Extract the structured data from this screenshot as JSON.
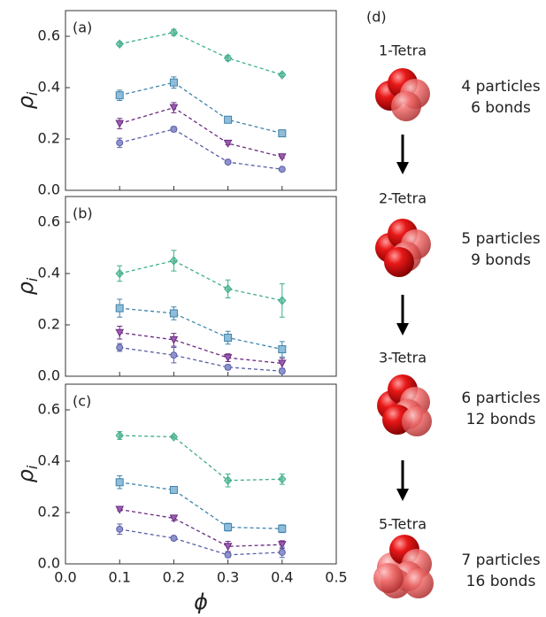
{
  "chart_data": [
    {
      "type": "line",
      "panel_label": "(a)",
      "ylabel": "ρ",
      "ylabel_sub": "i",
      "x": [
        0.1,
        0.2,
        0.3,
        0.4
      ],
      "xlim": [
        0,
        0.5
      ],
      "ylim": [
        0,
        0.7
      ],
      "xticks": [
        {
          "value": 0,
          "label": "0.0"
        },
        0.1,
        0.2,
        0.3,
        0.4,
        {
          "value": 0.5,
          "label": "0.5"
        }
      ],
      "show_xtick_labels": false,
      "yticks": [
        {
          "value": 0,
          "label": "0.0"
        },
        0.2,
        0.4,
        0.6
      ],
      "series": [
        {
          "color": "#3fae8c",
          "marker": "diamond",
          "values": [
            0.57,
            0.615,
            0.515,
            0.45
          ],
          "errors": [
            0.008,
            0.012,
            0.01,
            0.006
          ]
        },
        {
          "color": "#3f84ad",
          "marker": "square",
          "values": [
            0.37,
            0.42,
            0.275,
            0.222
          ],
          "errors": [
            0.02,
            0.022,
            0.01,
            0.012
          ]
        },
        {
          "color": "#6a2a82",
          "marker": "triangle-down",
          "values": [
            0.26,
            0.322,
            0.183,
            0.13
          ],
          "errors": [
            0.02,
            0.02,
            0.006,
            0.005
          ]
        },
        {
          "color": "#5a5fa8",
          "marker": "circle",
          "values": [
            0.185,
            0.238,
            0.11,
            0.082
          ],
          "errors": [
            0.018,
            0.01,
            0.005,
            0.004
          ]
        }
      ]
    },
    {
      "type": "line",
      "panel_label": "(b)",
      "ylabel": "ρ",
      "ylabel_sub": "i",
      "x": [
        0.1,
        0.2,
        0.3,
        0.4
      ],
      "xlim": [
        0,
        0.5
      ],
      "ylim": [
        0,
        0.7
      ],
      "xticks": [
        {
          "value": 0,
          "label": "0.0"
        },
        0.1,
        0.2,
        0.3,
        0.4,
        {
          "value": 0.5,
          "label": "0.5"
        }
      ],
      "show_xtick_labels": false,
      "yticks": [
        {
          "value": 0,
          "label": "0.0"
        },
        0.2,
        0.4,
        0.6
      ],
      "series": [
        {
          "color": "#3fae8c",
          "marker": "diamond",
          "values": [
            0.4,
            0.45,
            0.34,
            0.295
          ],
          "errors": [
            0.03,
            0.04,
            0.035,
            0.065
          ]
        },
        {
          "color": "#3f84ad",
          "marker": "square",
          "values": [
            0.265,
            0.245,
            0.15,
            0.105
          ],
          "errors": [
            0.035,
            0.025,
            0.025,
            0.03
          ]
        },
        {
          "color": "#6a2a82",
          "marker": "triangle-down",
          "values": [
            0.17,
            0.142,
            0.072,
            0.05
          ],
          "errors": [
            0.025,
            0.025,
            0.015,
            0.02
          ]
        },
        {
          "color": "#5a5fa8",
          "marker": "circle",
          "values": [
            0.112,
            0.082,
            0.035,
            0.02
          ],
          "errors": [
            0.015,
            0.03,
            0.01,
            0.01
          ]
        }
      ]
    },
    {
      "type": "line",
      "panel_label": "(c)",
      "ylabel": "ρ",
      "ylabel_sub": "i",
      "xlabel": "ϕ",
      "x": [
        0.1,
        0.2,
        0.3,
        0.4
      ],
      "xlim": [
        0,
        0.5
      ],
      "ylim": [
        0,
        0.7
      ],
      "xticks": [
        {
          "value": 0,
          "label": "0.0"
        },
        0.1,
        0.2,
        0.3,
        0.4,
        {
          "value": 0.5,
          "label": "0.5"
        }
      ],
      "show_xtick_labels": true,
      "yticks": [
        {
          "value": 0,
          "label": "0.0"
        },
        0.2,
        0.4,
        0.6
      ],
      "series": [
        {
          "color": "#3fae8c",
          "marker": "diamond",
          "values": [
            0.5,
            0.495,
            0.325,
            0.33
          ],
          "errors": [
            0.015,
            0.005,
            0.025,
            0.02
          ]
        },
        {
          "color": "#3f84ad",
          "marker": "square",
          "values": [
            0.318,
            0.288,
            0.143,
            0.137
          ],
          "errors": [
            0.025,
            0.01,
            0.015,
            0.015
          ]
        },
        {
          "color": "#6a2a82",
          "marker": "triangle-down",
          "values": [
            0.212,
            0.178,
            0.068,
            0.075
          ],
          "errors": [
            0.005,
            0.01,
            0.02,
            0.015
          ]
        },
        {
          "color": "#5a5fa8",
          "marker": "circle",
          "values": [
            0.135,
            0.1,
            0.035,
            0.045
          ],
          "errors": [
            0.02,
            0.005,
            0.01,
            0.02
          ]
        }
      ]
    }
  ],
  "diagram": {
    "label": "(d)",
    "stages": [
      {
        "name": "1-Tetra",
        "particles": "4 particles",
        "bonds": "6 bonds"
      },
      {
        "name": "2-Tetra",
        "particles": "5 particles",
        "bonds": "9 bonds"
      },
      {
        "name": "3-Tetra",
        "particles": "6 particles",
        "bonds": "12 bonds"
      },
      {
        "name": "5-Tetra",
        "particles": "7 particles",
        "bonds": "16 bonds"
      }
    ]
  }
}
